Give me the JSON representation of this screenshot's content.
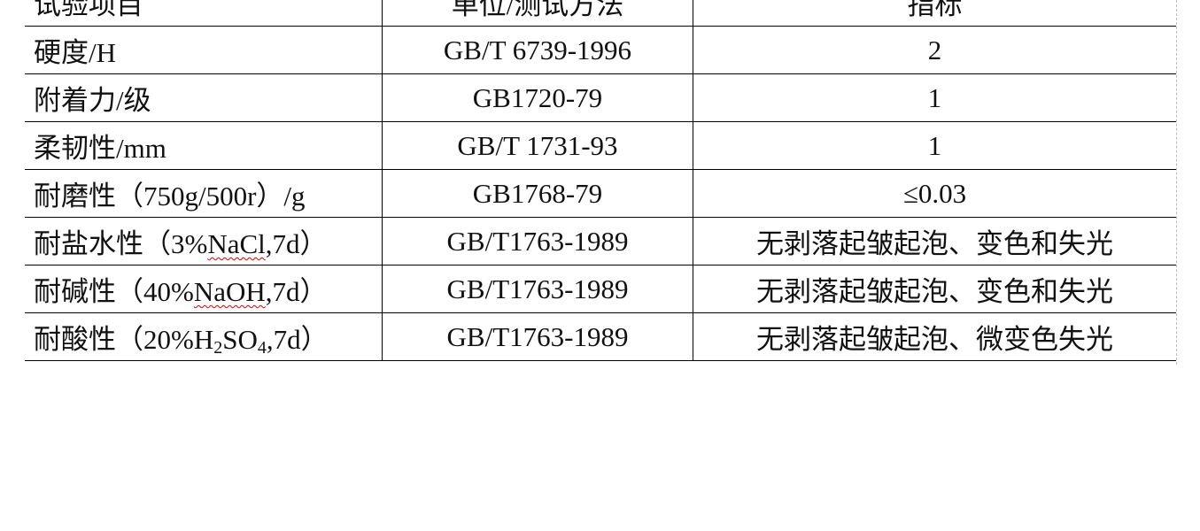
{
  "table": {
    "header": [
      "试验项目",
      "单位/测试方法",
      "指标"
    ],
    "rows": [
      [
        [
          {
            "t": "硬度/H"
          }
        ],
        [
          {
            "t": "GB/T 6739-1996"
          }
        ],
        [
          {
            "t": "2"
          }
        ]
      ],
      [
        [
          {
            "t": "附着力/级"
          }
        ],
        [
          {
            "t": "GB1720-79"
          }
        ],
        [
          {
            "t": "1"
          }
        ]
      ],
      [
        [
          {
            "t": "柔韧性/mm"
          }
        ],
        [
          {
            "t": "GB/T 1731-93"
          }
        ],
        [
          {
            "t": "1"
          }
        ]
      ],
      [
        [
          {
            "t": "耐磨性（750g/500r）/g"
          }
        ],
        [
          {
            "t": "GB1768-79"
          }
        ],
        [
          {
            "t": "≤0.03"
          }
        ]
      ],
      [
        [
          {
            "t": "耐盐水性（3%"
          },
          {
            "t": "NaCl",
            "spell": true
          },
          {
            "t": ",7d）"
          }
        ],
        [
          {
            "t": "GB/T1763-1989"
          }
        ],
        [
          {
            "t": "无剥落起皱起泡、变色和失光"
          }
        ]
      ],
      [
        [
          {
            "t": "耐碱性（40%"
          },
          {
            "t": "NaOH",
            "spell": true
          },
          {
            "t": ",7d）"
          }
        ],
        [
          {
            "t": "GB/T1763-1989"
          }
        ],
        [
          {
            "t": "无剥落起皱起泡、变色和失光"
          }
        ]
      ],
      [
        [
          {
            "t": "耐酸性（20%H"
          },
          {
            "t": "2",
            "sub": true
          },
          {
            "t": "SO"
          },
          {
            "t": "4",
            "sub": true
          },
          {
            "t": ",7d）"
          }
        ],
        [
          {
            "t": "GB/T1763-1989"
          }
        ],
        [
          {
            "t": "无剥落起皱起泡、微变色失光"
          }
        ]
      ]
    ]
  },
  "colors": {
    "spellcheck_underline": "#dd0000"
  }
}
